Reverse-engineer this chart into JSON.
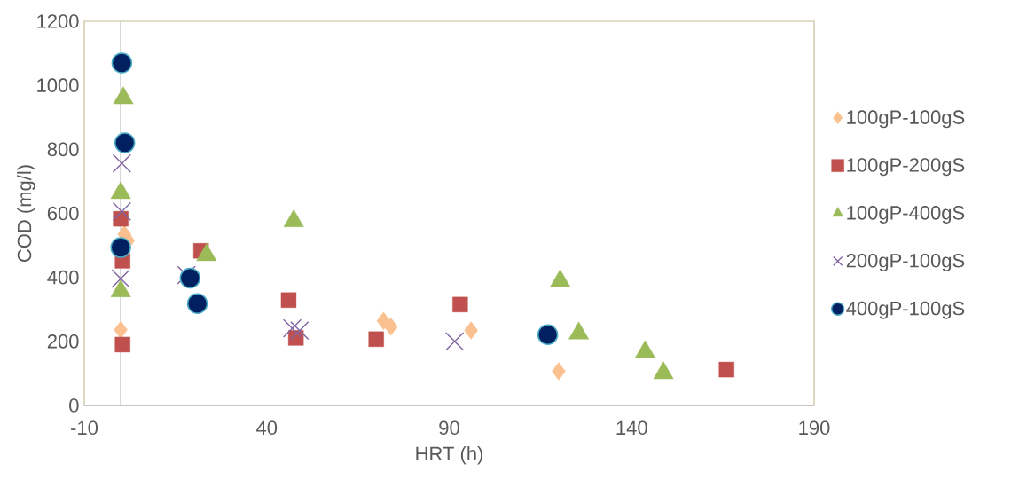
{
  "chart_data": {
    "type": "scatter",
    "xlabel": "HRT (h)",
    "ylabel": "COD (mg/l)",
    "xlim": [
      -10,
      190
    ],
    "xticks": [
      -10,
      40,
      90,
      140,
      190
    ],
    "ylim": [
      0,
      1200
    ],
    "yticks": [
      0,
      200,
      400,
      600,
      800,
      1000,
      1200
    ],
    "grid": false,
    "legend": "right",
    "ref_lines": [
      {
        "axis": "x",
        "value": 0,
        "color": "#bfbfbf"
      }
    ],
    "series": [
      {
        "name": "100gP-100gS",
        "color": "#fac090",
        "marker": "diamond",
        "x": [
          0,
          1,
          2,
          72,
          74,
          96,
          120
        ],
        "values": [
          236,
          535,
          515,
          264,
          246,
          234,
          107
        ]
      },
      {
        "name": "100gP-200gS",
        "color": "#c0504d",
        "marker": "square",
        "x": [
          0,
          0.5,
          0.5,
          22,
          46,
          48,
          70,
          93,
          166
        ],
        "values": [
          583,
          452,
          190,
          483,
          329,
          211,
          207,
          315,
          112
        ]
      },
      {
        "name": "100gP-400gS",
        "color": "#9bbb59",
        "marker": "triangle",
        "x": [
          0.7,
          0,
          0,
          23.5,
          47.4,
          120.4,
          125.5,
          143.7,
          148.7
        ],
        "values": [
          960,
          664,
          357,
          470,
          576,
          389,
          225,
          167,
          101
        ]
      },
      {
        "name": "200gP-100gS",
        "color": "#8064a2",
        "marker": "cross",
        "x": [
          0.3,
          0.3,
          0,
          18,
          47,
          49,
          91.5
        ],
        "values": [
          756,
          606,
          396,
          407,
          241,
          234,
          200
        ]
      },
      {
        "name": "400gP-100gS",
        "color": "#002060",
        "marker": "circle",
        "x": [
          0.3,
          1.1,
          0,
          19,
          21,
          117
        ],
        "values": [
          1070,
          820,
          493,
          398,
          318,
          221
        ]
      }
    ]
  }
}
